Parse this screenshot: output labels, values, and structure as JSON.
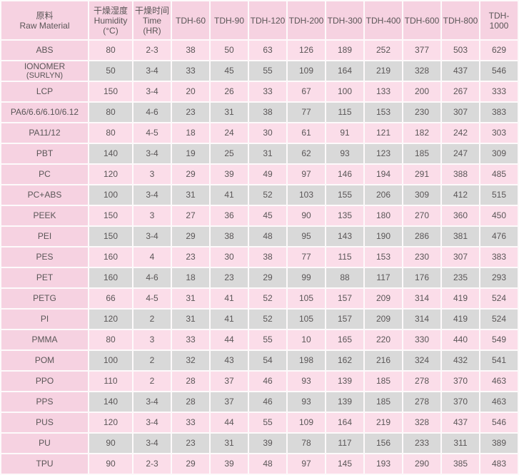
{
  "table": {
    "header": {
      "material_zh": "原料",
      "material_en": "Raw Material",
      "humidity_zh": "干燥湿度",
      "humidity_en": "Humidity",
      "humidity_unit": "(°C)",
      "time_zh": "干燥时间",
      "time_en": "Time",
      "time_unit": "(HR)"
    },
    "tdh_columns": [
      "TDH-60",
      "TDH-90",
      "TDH-120",
      "TDH-200",
      "TDH-300",
      "TDH-400",
      "TDH-600",
      "TDH-800",
      "TDH-1000"
    ],
    "rows": [
      {
        "material": "ABS",
        "humidity": "80",
        "time": "2-3",
        "values": [
          38,
          50,
          63,
          126,
          189,
          252,
          377,
          503,
          629
        ]
      },
      {
        "material": "IONOMER",
        "material_sub": "(SURLYN)",
        "humidity": "50",
        "time": "3-4",
        "values": [
          33,
          45,
          55,
          109,
          164,
          219,
          328,
          437,
          546
        ]
      },
      {
        "material": "LCP",
        "humidity": "150",
        "time": "3-4",
        "values": [
          20,
          26,
          33,
          67,
          100,
          133,
          200,
          267,
          333
        ]
      },
      {
        "material": "PA6/6.6/6.10/6.12",
        "humidity": "80",
        "time": "4-6",
        "values": [
          23,
          31,
          38,
          77,
          115,
          153,
          230,
          307,
          383
        ]
      },
      {
        "material": "PA11/12",
        "humidity": "80",
        "time": "4-5",
        "values": [
          18,
          24,
          30,
          61,
          91,
          121,
          182,
          242,
          303
        ]
      },
      {
        "material": "PBT",
        "humidity": "140",
        "time": "3-4",
        "values": [
          19,
          25,
          31,
          62,
          93,
          123,
          185,
          247,
          309
        ]
      },
      {
        "material": "PC",
        "humidity": "120",
        "time": "3",
        "values": [
          29,
          39,
          49,
          97,
          146,
          194,
          291,
          388,
          485
        ]
      },
      {
        "material": "PC+ABS",
        "humidity": "100",
        "time": "3-4",
        "values": [
          31,
          41,
          52,
          103,
          155,
          206,
          309,
          412,
          515
        ]
      },
      {
        "material": "PEEK",
        "humidity": "150",
        "time": "3",
        "values": [
          27,
          36,
          45,
          90,
          135,
          180,
          270,
          360,
          450
        ]
      },
      {
        "material": "PEI",
        "humidity": "150",
        "time": "3-4",
        "values": [
          29,
          38,
          48,
          95,
          143,
          190,
          286,
          381,
          476
        ]
      },
      {
        "material": "PES",
        "humidity": "160",
        "time": "4",
        "values": [
          23,
          30,
          38,
          77,
          115,
          153,
          230,
          307,
          383
        ]
      },
      {
        "material": "PET",
        "humidity": "160",
        "time": "4-6",
        "values": [
          18,
          23,
          29,
          99,
          88,
          117,
          176,
          235,
          293
        ]
      },
      {
        "material": "PETG",
        "humidity": "66",
        "time": "4-5",
        "values": [
          31,
          41,
          52,
          105,
          157,
          209,
          314,
          419,
          524
        ]
      },
      {
        "material": "PI",
        "humidity": "120",
        "time": "2",
        "values": [
          31,
          41,
          52,
          105,
          157,
          209,
          314,
          419,
          524
        ]
      },
      {
        "material": "PMMA",
        "humidity": "80",
        "time": "3",
        "values": [
          33,
          44,
          55,
          10,
          165,
          220,
          330,
          440,
          549
        ]
      },
      {
        "material": "POM",
        "humidity": "100",
        "time": "2",
        "values": [
          32,
          43,
          54,
          198,
          162,
          216,
          324,
          432,
          541
        ]
      },
      {
        "material": "PPO",
        "humidity": "110",
        "time": "2",
        "values": [
          28,
          37,
          46,
          93,
          139,
          185,
          278,
          370,
          463
        ]
      },
      {
        "material": "PPS",
        "humidity": "140",
        "time": "3-4",
        "values": [
          28,
          37,
          46,
          93,
          139,
          185,
          278,
          370,
          463
        ]
      },
      {
        "material": "PUS",
        "humidity": "120",
        "time": "3-4",
        "values": [
          33,
          44,
          55,
          109,
          164,
          219,
          328,
          437,
          546
        ]
      },
      {
        "material": "PU",
        "humidity": "90",
        "time": "3-4",
        "values": [
          23,
          31,
          39,
          78,
          117,
          156,
          233,
          311,
          389
        ]
      },
      {
        "material": "TPU",
        "humidity": "90",
        "time": "2-3",
        "values": [
          29,
          39,
          48,
          97,
          145,
          193,
          290,
          385,
          483
        ]
      }
    ],
    "colors": {
      "header_pink": "#f6d2e1",
      "row_pink": "#fbdde9",
      "row_gray": "#d9d9d9",
      "text": "#5a5657"
    }
  }
}
